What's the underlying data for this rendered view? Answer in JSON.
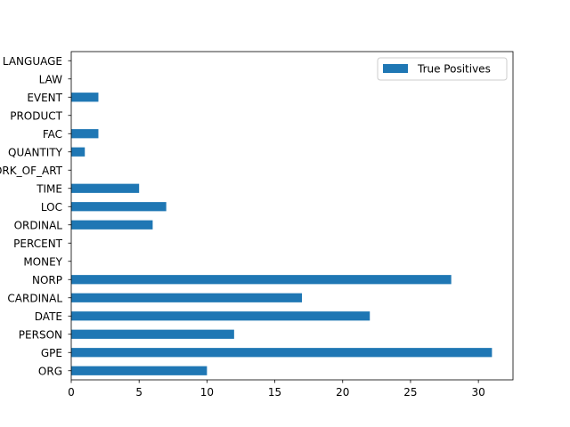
{
  "colors": {
    "bar": "#1f77b4",
    "axis": "#000000",
    "background": "#ffffff",
    "legend_border": "#cccccc"
  },
  "chart_data": {
    "type": "bar",
    "orientation": "horizontal",
    "title": "",
    "xlabel": "",
    "ylabel": "",
    "xlim": [
      0,
      32.55
    ],
    "xticks": [
      0,
      5,
      10,
      15,
      20,
      25,
      30
    ],
    "grid": false,
    "legend": {
      "position": "top-right",
      "entries": [
        "True Positives"
      ]
    },
    "categories": [
      "ORG",
      "GPE",
      "PERSON",
      "DATE",
      "CARDINAL",
      "NORP",
      "MONEY",
      "PERCENT",
      "ORDINAL",
      "LOC",
      "TIME",
      "WORK_OF_ART",
      "QUANTITY",
      "FAC",
      "PRODUCT",
      "EVENT",
      "LAW",
      "LANGUAGE"
    ],
    "series": [
      {
        "name": "True Positives",
        "values": [
          10,
          31,
          12,
          22,
          17,
          28,
          0,
          0,
          6,
          7,
          5,
          0,
          1,
          2,
          0,
          2,
          0,
          0
        ]
      }
    ]
  }
}
